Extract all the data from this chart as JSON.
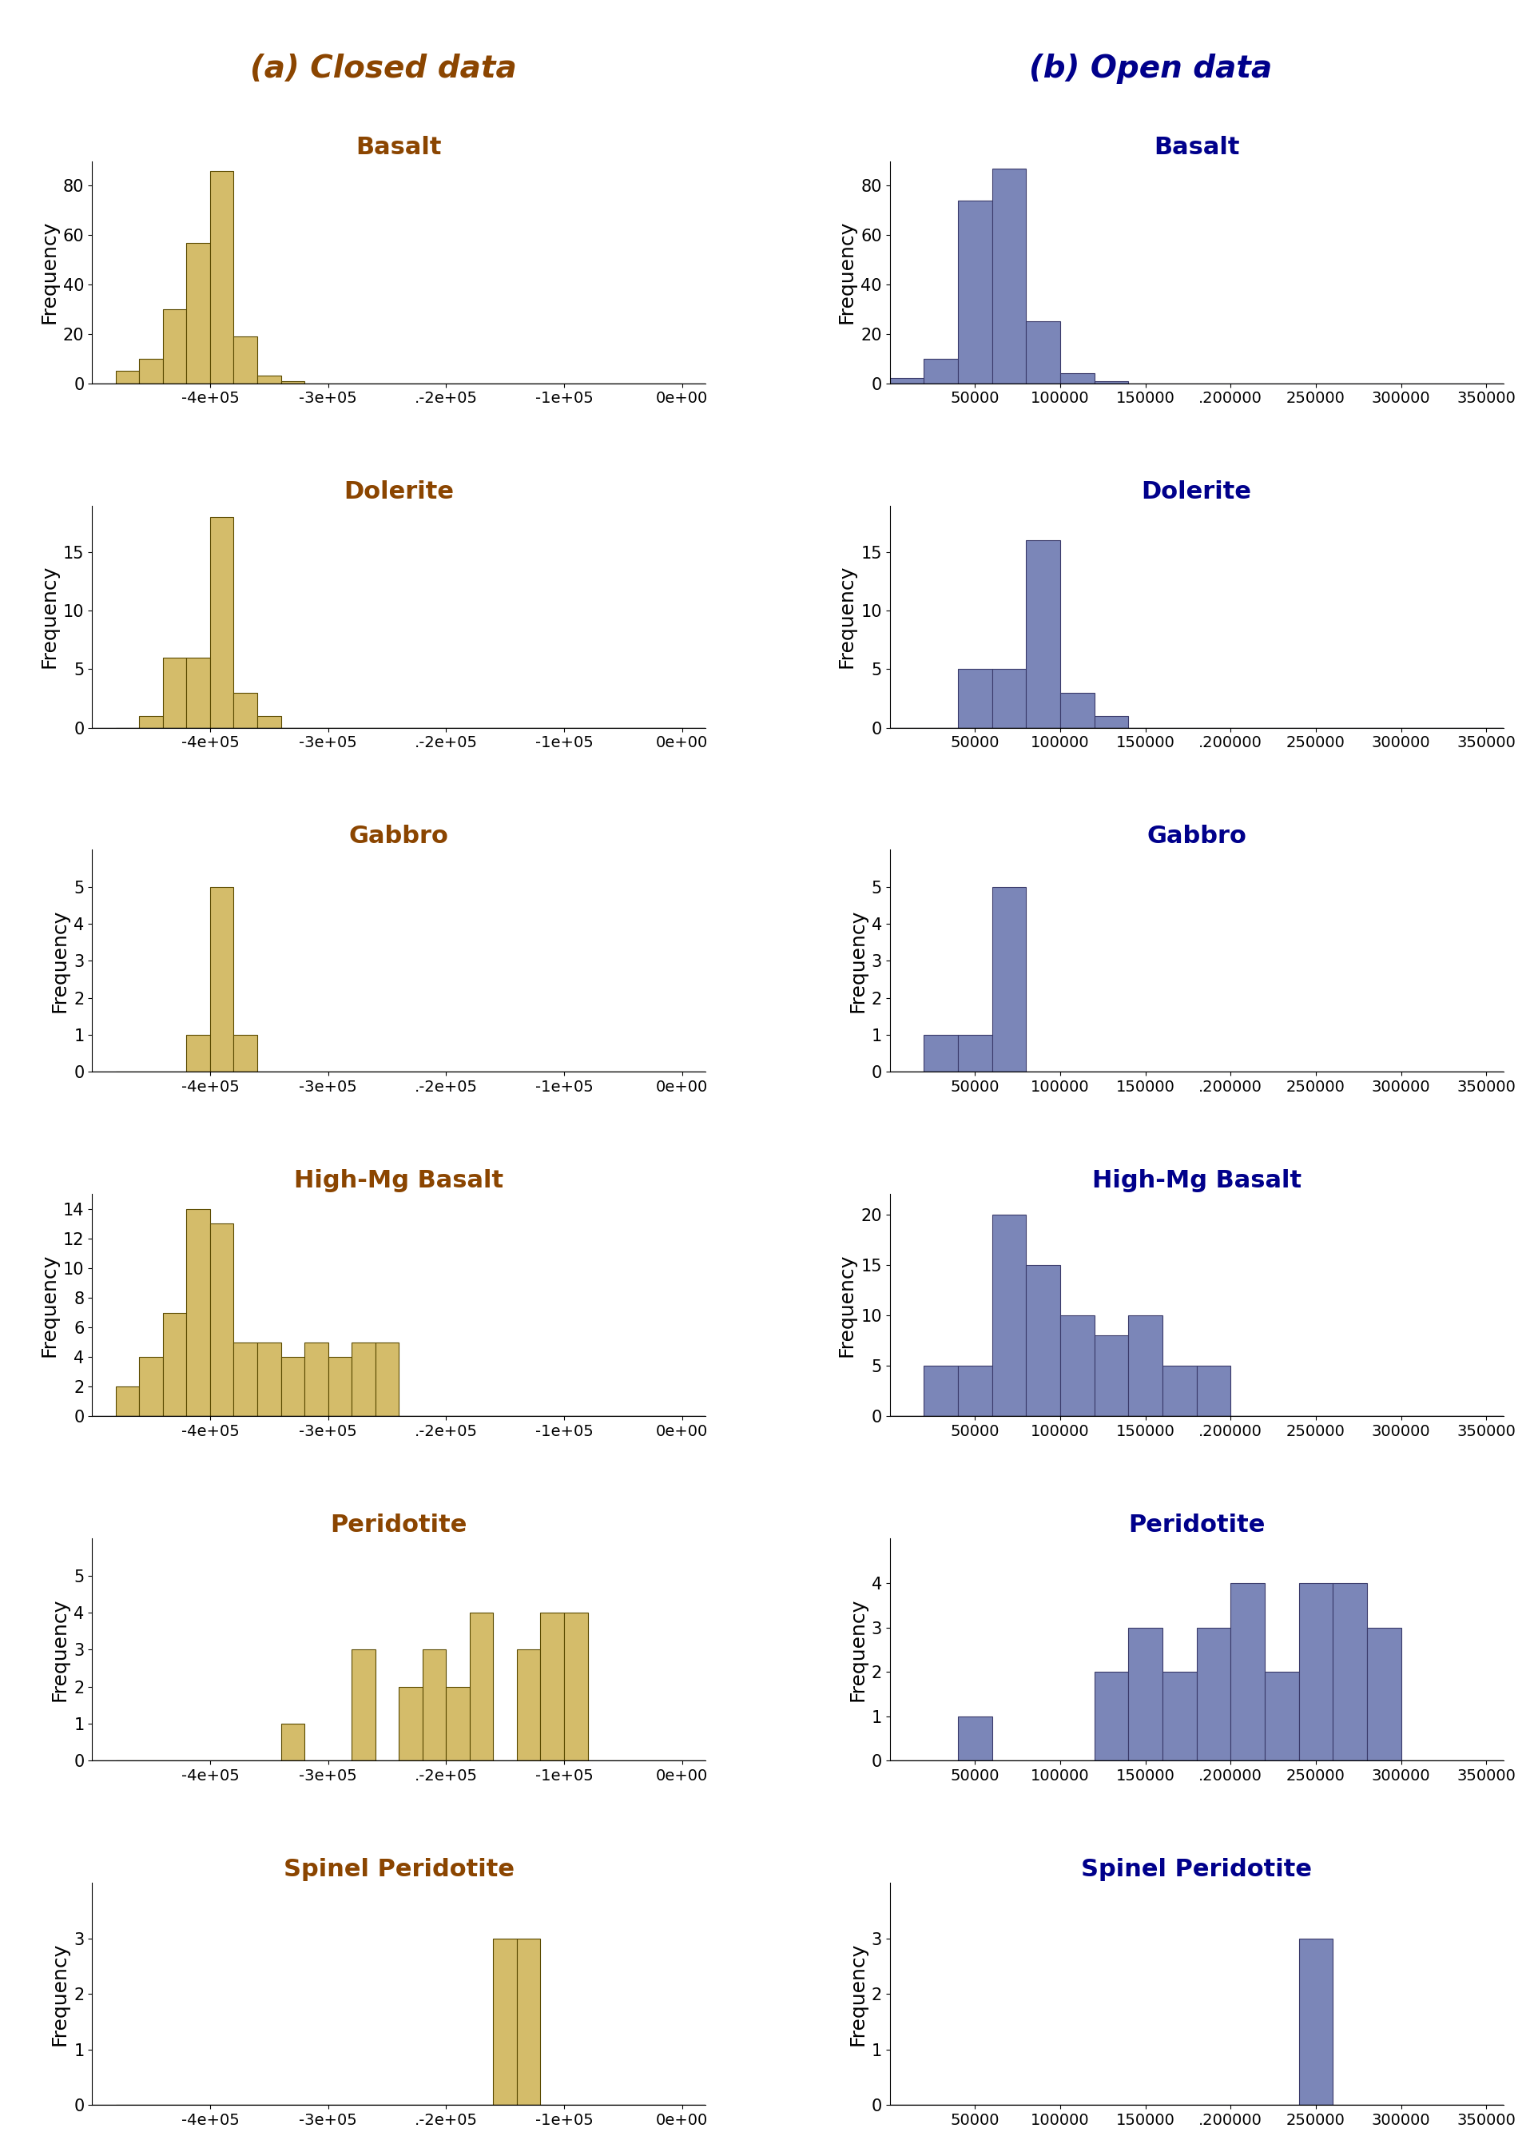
{
  "title_left": "(a) Closed data",
  "title_right": "(b) Open data",
  "title_color_left": "#8B4500",
  "title_color_right": "#00008B",
  "title_fontsize": 28,
  "label_fontsize": 18,
  "tick_fontsize": 15,
  "subtitle_fontsize": 22,
  "closed_color": "#D4BC6A",
  "open_color": "#7B86B8",
  "closed_edge": "#5A4A00",
  "open_edge": "#3A3A6A",
  "ylabel": "Frequency",
  "rock_types": [
    "Basalt",
    "Dolerite",
    "Gabbro",
    "High-Mg Basalt",
    "Peridotite",
    "Spinel Peridotite"
  ],
  "subtitle_color_closed": "#8B4500",
  "subtitle_color_open": "#00008B",
  "closed_basalt": {
    "bin_edges": [
      -480000,
      -460000,
      -440000,
      -420000,
      -400000,
      -380000,
      -360000,
      -340000,
      -320000,
      -300000,
      -280000,
      -260000,
      -240000,
      -220000,
      -200000,
      -180000,
      -160000,
      -140000,
      -120000,
      -100000,
      -80000,
      -60000,
      -40000,
      -20000,
      0
    ],
    "counts": [
      5,
      10,
      30,
      57,
      86,
      19,
      3,
      1,
      0,
      0,
      0,
      0,
      0,
      0,
      0,
      0,
      0,
      0,
      0,
      0,
      0,
      0,
      0,
      0
    ],
    "xlim": [
      -500000,
      20000
    ],
    "ylim": [
      0,
      90
    ],
    "yticks": [
      0,
      20,
      40,
      60,
      80
    ],
    "xticks": [
      -400000,
      -300000,
      -200000,
      -100000,
      0
    ],
    "xticklabels": [
      "-4e+05",
      "-3e+05",
      ".-2e+05",
      "-1e+05",
      "0e+00"
    ]
  },
  "open_basalt": {
    "bin_edges": [
      0,
      20000,
      40000,
      60000,
      80000,
      100000,
      120000,
      140000,
      160000,
      180000,
      200000,
      220000,
      240000,
      260000,
      280000,
      300000,
      320000,
      340000,
      360000
    ],
    "counts": [
      2,
      10,
      74,
      87,
      25,
      4,
      1,
      0,
      0,
      0,
      0,
      0,
      0,
      0,
      0,
      0,
      0,
      0
    ],
    "xlim": [
      0,
      360000
    ],
    "ylim": [
      0,
      90
    ],
    "yticks": [
      0,
      20,
      40,
      60,
      80
    ],
    "xticks": [
      50000,
      100000,
      150000,
      200000,
      250000,
      300000,
      350000
    ],
    "xticklabels": [
      "50000",
      "100000",
      "150000",
      ".200000",
      "250000",
      "300000",
      "350000"
    ]
  },
  "closed_dolerite": {
    "bin_edges": [
      -480000,
      -460000,
      -440000,
      -420000,
      -400000,
      -380000,
      -360000,
      -340000,
      -320000,
      -300000,
      -280000,
      -260000,
      -240000,
      -220000,
      -200000,
      -180000,
      -160000,
      -140000,
      -120000,
      -100000,
      -80000,
      -60000,
      -40000,
      -20000,
      0
    ],
    "counts": [
      0,
      1,
      6,
      6,
      18,
      3,
      1,
      0,
      0,
      0,
      0,
      0,
      0,
      0,
      0,
      0,
      0,
      0,
      0,
      0,
      0,
      0,
      0,
      0
    ],
    "xlim": [
      -500000,
      20000
    ],
    "ylim": [
      0,
      19
    ],
    "yticks": [
      0,
      5,
      10,
      15
    ],
    "xticks": [
      -400000,
      -300000,
      -200000,
      -100000,
      0
    ],
    "xticklabels": [
      "-4e+05",
      "-3e+05",
      ".-2e+05",
      "-1e+05",
      "0e+00"
    ]
  },
  "open_dolerite": {
    "bin_edges": [
      0,
      20000,
      40000,
      60000,
      80000,
      100000,
      120000,
      140000,
      160000,
      180000,
      200000,
      220000,
      240000,
      260000,
      280000,
      300000,
      320000,
      340000,
      360000
    ],
    "counts": [
      0,
      0,
      5,
      5,
      16,
      3,
      1,
      0,
      0,
      0,
      0,
      0,
      0,
      0,
      0,
      0,
      0,
      0
    ],
    "xlim": [
      0,
      360000
    ],
    "ylim": [
      0,
      19
    ],
    "yticks": [
      0,
      5,
      10,
      15
    ],
    "xticks": [
      50000,
      100000,
      150000,
      200000,
      250000,
      300000,
      350000
    ],
    "xticklabels": [
      "50000",
      "100000",
      "150000",
      ".200000",
      "250000",
      "300000",
      "350000"
    ]
  },
  "closed_gabbro": {
    "bin_edges": [
      -480000,
      -460000,
      -440000,
      -420000,
      -400000,
      -380000,
      -360000,
      -340000,
      -320000,
      -300000,
      -280000,
      -260000,
      -240000,
      -220000,
      -200000,
      -180000,
      -160000,
      -140000,
      -120000,
      -100000,
      -80000,
      -60000,
      -40000,
      -20000,
      0
    ],
    "counts": [
      0,
      0,
      0,
      1,
      5,
      1,
      0,
      0,
      0,
      0,
      0,
      0,
      0,
      0,
      0,
      0,
      0,
      0,
      0,
      0,
      0,
      0,
      0,
      0
    ],
    "xlim": [
      -500000,
      20000
    ],
    "ylim": [
      0,
      6
    ],
    "yticks": [
      0,
      1,
      2,
      3,
      4,
      5
    ],
    "xticks": [
      -400000,
      -300000,
      -200000,
      -100000,
      0
    ],
    "xticklabels": [
      "-4e+05",
      "-3e+05",
      ".-2e+05",
      "-1e+05",
      "0e+00"
    ]
  },
  "open_gabbro": {
    "bin_edges": [
      0,
      20000,
      40000,
      60000,
      80000,
      100000,
      120000,
      140000,
      160000,
      180000,
      200000,
      220000,
      240000,
      260000,
      280000,
      300000,
      320000,
      340000,
      360000
    ],
    "counts": [
      0,
      1,
      1,
      5,
      0,
      0,
      0,
      0,
      0,
      0,
      0,
      0,
      0,
      0,
      0,
      0,
      0,
      0
    ],
    "xlim": [
      0,
      360000
    ],
    "ylim": [
      0,
      6
    ],
    "yticks": [
      0,
      1,
      2,
      3,
      4,
      5
    ],
    "xticks": [
      50000,
      100000,
      150000,
      200000,
      250000,
      300000,
      350000
    ],
    "xticklabels": [
      "50000",
      "100000",
      "150000",
      ".200000",
      "250000",
      "300000",
      "350000"
    ]
  },
  "closed_highmg": {
    "bin_edges": [
      -480000,
      -460000,
      -440000,
      -420000,
      -400000,
      -380000,
      -360000,
      -340000,
      -320000,
      -300000,
      -280000,
      -260000,
      -240000,
      -220000,
      -200000,
      -180000,
      -160000,
      -140000,
      -120000,
      -100000,
      -80000,
      -60000,
      -40000,
      -20000,
      0
    ],
    "counts": [
      2,
      4,
      7,
      14,
      13,
      5,
      5,
      4,
      5,
      4,
      5,
      5,
      0,
      0,
      0,
      0,
      0,
      0,
      0,
      0,
      0,
      0,
      0,
      0
    ],
    "xlim": [
      -500000,
      20000
    ],
    "ylim": [
      0,
      15
    ],
    "yticks": [
      0,
      2,
      4,
      6,
      8,
      10,
      12,
      14
    ],
    "xticks": [
      -400000,
      -300000,
      -200000,
      -100000,
      0
    ],
    "xticklabels": [
      "-4e+05",
      "-3e+05",
      ".-2e+05",
      "-1e+05",
      "0e+00"
    ]
  },
  "open_highmg": {
    "bin_edges": [
      0,
      20000,
      40000,
      60000,
      80000,
      100000,
      120000,
      140000,
      160000,
      180000,
      200000,
      220000,
      240000,
      260000,
      280000,
      300000,
      320000,
      340000,
      360000
    ],
    "counts": [
      0,
      5,
      5,
      20,
      15,
      10,
      8,
      10,
      5,
      5,
      0,
      0,
      0,
      0,
      0,
      0,
      0,
      0
    ],
    "xlim": [
      0,
      360000
    ],
    "ylim": [
      0,
      22
    ],
    "yticks": [
      0,
      5,
      10,
      15,
      20
    ],
    "xticks": [
      50000,
      100000,
      150000,
      200000,
      250000,
      300000,
      350000
    ],
    "xticklabels": [
      "50000",
      "100000",
      "150000",
      ".200000",
      "250000",
      "300000",
      "350000"
    ]
  },
  "closed_peridotite": {
    "bin_edges": [
      -480000,
      -460000,
      -440000,
      -420000,
      -400000,
      -380000,
      -360000,
      -340000,
      -320000,
      -300000,
      -280000,
      -260000,
      -240000,
      -220000,
      -200000,
      -180000,
      -160000,
      -140000,
      -120000,
      -100000,
      -80000,
      -60000,
      -40000,
      -20000,
      0
    ],
    "counts": [
      0,
      0,
      0,
      0,
      0,
      0,
      0,
      1,
      0,
      0,
      3,
      0,
      2,
      3,
      2,
      4,
      0,
      3,
      4,
      4,
      0,
      0,
      0,
      0
    ],
    "xlim": [
      -500000,
      20000
    ],
    "ylim": [
      0,
      6
    ],
    "yticks": [
      0,
      1,
      2,
      3,
      4,
      5
    ],
    "xticks": [
      -400000,
      -300000,
      -200000,
      -100000,
      0
    ],
    "xticklabels": [
      "-4e+05",
      "-3e+05",
      ".-2e+05",
      "-1e+05",
      "0e+00"
    ]
  },
  "open_peridotite": {
    "bin_edges": [
      0,
      20000,
      40000,
      60000,
      80000,
      100000,
      120000,
      140000,
      160000,
      180000,
      200000,
      220000,
      240000,
      260000,
      280000,
      300000,
      320000,
      340000,
      360000
    ],
    "counts": [
      0,
      0,
      1,
      0,
      0,
      0,
      2,
      3,
      2,
      3,
      4,
      2,
      4,
      4,
      3,
      0,
      0,
      0
    ],
    "xlim": [
      0,
      360000
    ],
    "ylim": [
      0,
      5
    ],
    "yticks": [
      0,
      1,
      2,
      3,
      4
    ],
    "xticks": [
      50000,
      100000,
      150000,
      200000,
      250000,
      300000,
      350000
    ],
    "xticklabels": [
      "50000",
      "100000",
      "150000",
      ".200000",
      "250000",
      "300000",
      "350000"
    ]
  },
  "closed_spinel": {
    "bin_edges": [
      -480000,
      -460000,
      -440000,
      -420000,
      -400000,
      -380000,
      -360000,
      -340000,
      -320000,
      -300000,
      -280000,
      -260000,
      -240000,
      -220000,
      -200000,
      -180000,
      -160000,
      -140000,
      -120000,
      -100000,
      -80000,
      -60000,
      -40000,
      -20000,
      0
    ],
    "counts": [
      0,
      0,
      0,
      0,
      0,
      0,
      0,
      0,
      0,
      0,
      0,
      0,
      0,
      0,
      0,
      0,
      3,
      3,
      0,
      0,
      0,
      0,
      0,
      0
    ],
    "xlim": [
      -500000,
      20000
    ],
    "ylim": [
      0,
      4
    ],
    "yticks": [
      0,
      1,
      2,
      3
    ],
    "xticks": [
      -400000,
      -300000,
      -200000,
      -100000,
      0
    ],
    "xticklabels": [
      "-4e+05",
      "-3e+05",
      ".-2e+05",
      "-1e+05",
      "0e+00"
    ]
  },
  "open_spinel": {
    "bin_edges": [
      0,
      20000,
      40000,
      60000,
      80000,
      100000,
      120000,
      140000,
      160000,
      180000,
      200000,
      220000,
      240000,
      260000,
      280000,
      300000,
      320000,
      340000,
      360000
    ],
    "counts": [
      0,
      0,
      0,
      0,
      0,
      0,
      0,
      0,
      0,
      0,
      0,
      0,
      3,
      0,
      0,
      0,
      0,
      0
    ],
    "xlim": [
      0,
      360000
    ],
    "ylim": [
      0,
      4
    ],
    "yticks": [
      0,
      1,
      2,
      3
    ],
    "xticks": [
      50000,
      100000,
      150000,
      200000,
      250000,
      300000,
      350000
    ],
    "xticklabels": [
      "50000",
      "100000",
      "150000",
      ".200000",
      "250000",
      "300000",
      "350000"
    ]
  }
}
